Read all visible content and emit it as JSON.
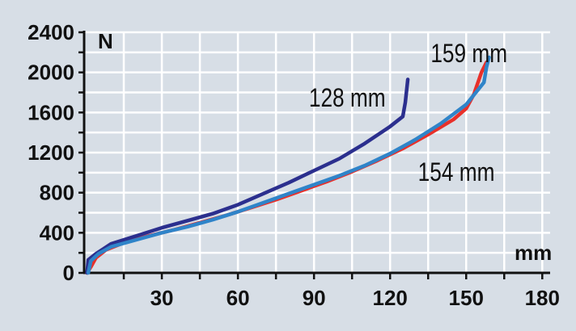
{
  "chart_data": {
    "type": "line",
    "xlabel": "mm",
    "ylabel": "N",
    "xlim": [
      0,
      180
    ],
    "ylim": [
      0,
      2400
    ],
    "xticks": [
      30,
      60,
      90,
      120,
      150,
      180
    ],
    "yticks": [
      0,
      400,
      800,
      1200,
      1600,
      2000,
      2400
    ],
    "grid": true,
    "series": [
      {
        "color": "#e8302a",
        "values": [
          [
            0.5,
            0
          ],
          [
            2,
            60
          ],
          [
            4,
            150
          ],
          [
            8,
            230
          ],
          [
            15,
            300
          ],
          [
            25,
            370
          ],
          [
            35,
            430
          ],
          [
            45,
            500
          ],
          [
            55,
            570
          ],
          [
            65,
            650
          ],
          [
            75,
            730
          ],
          [
            85,
            820
          ],
          [
            95,
            910
          ],
          [
            105,
            1010
          ],
          [
            115,
            1120
          ],
          [
            125,
            1240
          ],
          [
            135,
            1380
          ],
          [
            145,
            1530
          ],
          [
            150,
            1640
          ],
          [
            153,
            1780
          ],
          [
            156,
            2000
          ],
          [
            158,
            2100
          ]
        ]
      },
      {
        "color": "#2b2f8e",
        "values": [
          [
            0.5,
            0
          ],
          [
            1,
            130
          ],
          [
            4,
            190
          ],
          [
            10,
            290
          ],
          [
            20,
            370
          ],
          [
            30,
            450
          ],
          [
            40,
            520
          ],
          [
            50,
            590
          ],
          [
            60,
            680
          ],
          [
            70,
            790
          ],
          [
            80,
            900
          ],
          [
            90,
            1020
          ],
          [
            100,
            1140
          ],
          [
            110,
            1290
          ],
          [
            120,
            1460
          ],
          [
            125,
            1560
          ],
          [
            126,
            1700
          ],
          [
            127,
            1930
          ]
        ]
      },
      {
        "color": "#2f84c9",
        "values": [
          [
            1,
            0
          ],
          [
            2,
            120
          ],
          [
            5,
            190
          ],
          [
            10,
            260
          ],
          [
            20,
            330
          ],
          [
            30,
            400
          ],
          [
            40,
            460
          ],
          [
            50,
            530
          ],
          [
            60,
            610
          ],
          [
            70,
            700
          ],
          [
            80,
            790
          ],
          [
            90,
            880
          ],
          [
            100,
            970
          ],
          [
            110,
            1070
          ],
          [
            120,
            1190
          ],
          [
            130,
            1330
          ],
          [
            140,
            1490
          ],
          [
            150,
            1680
          ],
          [
            157,
            1900
          ],
          [
            158,
            2050
          ],
          [
            159,
            2150
          ]
        ]
      }
    ],
    "annotations": [
      {
        "text": "159 mm",
        "x": 136,
        "y": 2100
      },
      {
        "text": "128 mm",
        "x": 88,
        "y": 1660
      },
      {
        "text": "154 mm",
        "x": 131,
        "y": 920
      }
    ]
  }
}
